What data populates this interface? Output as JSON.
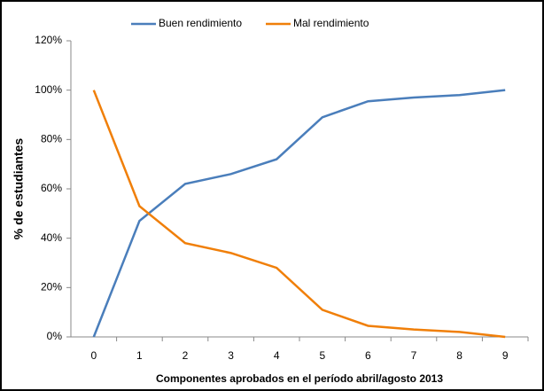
{
  "chart_data": {
    "type": "line",
    "x_label": "Componentes aprobados en el período abril/agosto 2013",
    "y_label": "% de estudiantes",
    "categories": [
      "0",
      "1",
      "2",
      "3",
      "4",
      "5",
      "6",
      "7",
      "8",
      "9"
    ],
    "series": [
      {
        "name": "Buen rendimiento",
        "color": "#4a7ebb",
        "values": [
          0,
          47,
          62,
          66,
          72,
          89,
          95.5,
          97,
          98,
          100
        ]
      },
      {
        "name": "Mal rendimiento",
        "color": "#f07f09",
        "values": [
          100,
          53,
          38,
          34,
          28,
          11,
          4.5,
          3,
          2,
          0
        ]
      }
    ],
    "ylim": [
      0,
      120
    ],
    "yticks": [
      {
        "value": 0,
        "label": "0%"
      },
      {
        "value": 20,
        "label": "20%"
      },
      {
        "value": 40,
        "label": "40%"
      },
      {
        "value": 60,
        "label": "60%"
      },
      {
        "value": 80,
        "label": "80%"
      },
      {
        "value": 100,
        "label": "100%"
      },
      {
        "value": 120,
        "label": "120%"
      }
    ],
    "legend": "top",
    "grid": false
  }
}
